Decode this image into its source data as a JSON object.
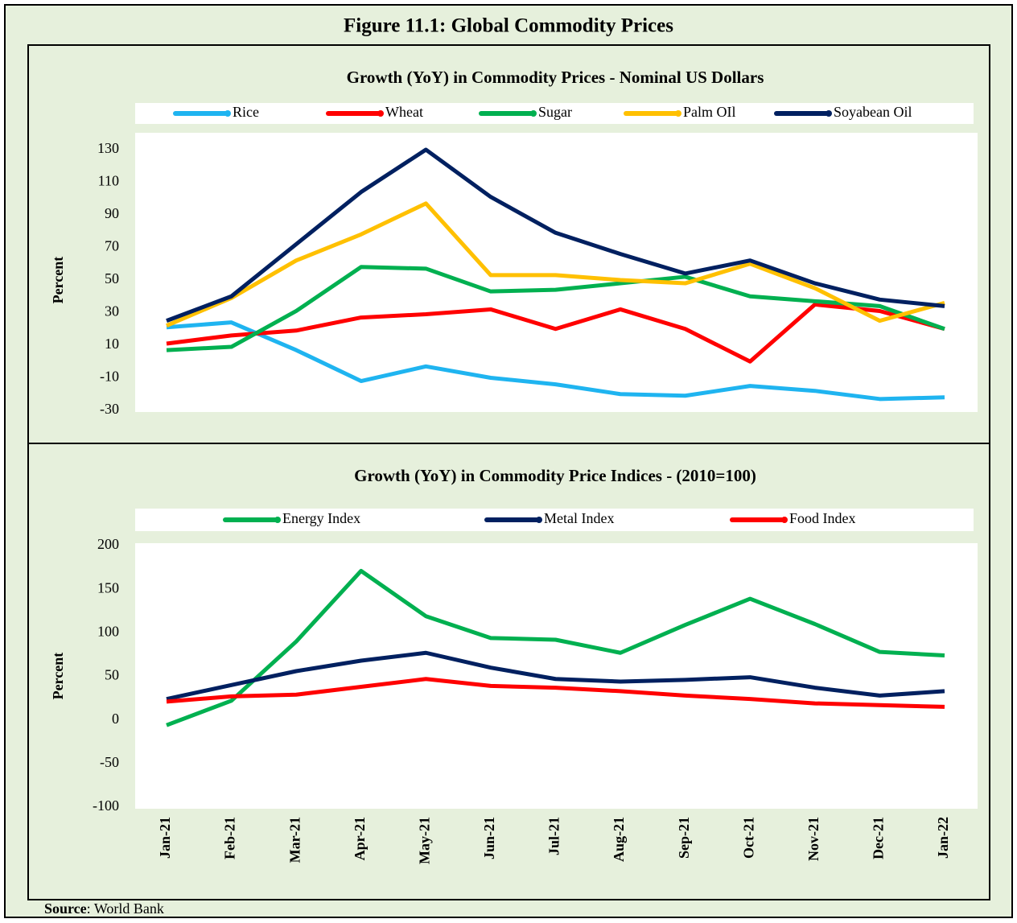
{
  "title": "Figure 11.1: Global Commodity Prices",
  "source": {
    "label": "Source",
    "text": ": World Bank"
  },
  "chart_data": [
    {
      "type": "line",
      "title": "Growth (YoY) in Commodity Prices - Nominal US Dollars",
      "y_label": "Percent",
      "ylim": [
        -30,
        130
      ],
      "yticks": [
        -30,
        -10,
        10,
        30,
        50,
        70,
        90,
        110,
        130
      ],
      "series": [
        {
          "name": "Rice",
          "color": "#1fb4f0",
          "values": [
            21,
            24,
            7,
            -12,
            -3,
            -10,
            -14,
            -20,
            -21,
            -15,
            -18,
            -23,
            -22
          ]
        },
        {
          "name": "Wheat",
          "color": "#ff0000",
          "values": [
            11,
            16,
            19,
            27,
            29,
            32,
            20,
            32,
            20,
            0,
            35,
            31,
            20
          ]
        },
        {
          "name": "Sugar",
          "color": "#00b050",
          "values": [
            7,
            9,
            31,
            58,
            57,
            43,
            44,
            48,
            52,
            40,
            37,
            34,
            20
          ]
        },
        {
          "name": "Palm OIl",
          "color": "#ffc000",
          "values": [
            22,
            39,
            62,
            78,
            97,
            53,
            53,
            50,
            48,
            60,
            45,
            25,
            36
          ]
        },
        {
          "name": "Soyabean Oil",
          "color": "#002060",
          "values": [
            25,
            40,
            72,
            104,
            130,
            101,
            79,
            66,
            54,
            62,
            48,
            38,
            34
          ]
        }
      ]
    },
    {
      "type": "line",
      "title": "Growth (YoY) in Commodity Price Indices -   (2010=100)",
      "y_label": "Percent",
      "categories": [
        "Jan-21",
        "Feb-21",
        "Mar-21",
        "Apr-21",
        "May-21",
        "Jun-21",
        "Jul-21",
        "Aug-21",
        "Sep-21",
        "Oct-21",
        "Nov-21",
        "Dec-21",
        "Jan-22"
      ],
      "ylim": [
        -100,
        200
      ],
      "yticks": [
        -100,
        -50,
        0,
        50,
        100,
        150,
        200
      ],
      "series": [
        {
          "name": "Energy Index",
          "color": "#00b050",
          "values": [
            -6,
            22,
            90,
            171,
            119,
            94,
            92,
            77,
            109,
            139,
            110,
            78,
            74
          ]
        },
        {
          "name": "Metal Index",
          "color": "#002060",
          "values": [
            24,
            40,
            56,
            68,
            77,
            60,
            47,
            44,
            46,
            49,
            37,
            28,
            33
          ]
        },
        {
          "name": "Food Index",
          "color": "#ff0000",
          "values": [
            21,
            27,
            29,
            38,
            47,
            39,
            37,
            33,
            28,
            24,
            19,
            17,
            15
          ]
        }
      ]
    }
  ]
}
